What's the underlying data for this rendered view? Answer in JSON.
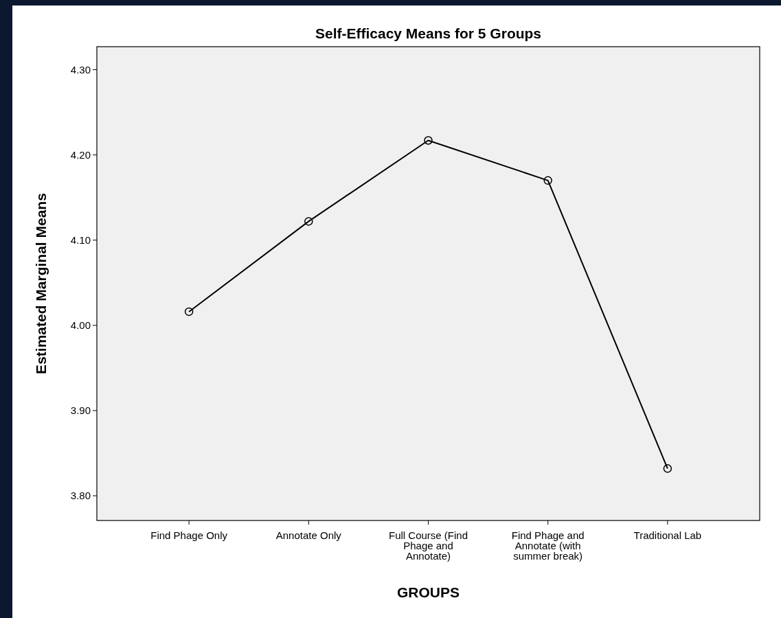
{
  "chart_data": {
    "type": "line",
    "title": "Self-Efficacy Means for 5 Groups",
    "xlabel": "GROUPS",
    "ylabel": "Estimated Marginal Means",
    "categories": [
      "Find Phage Only",
      "Annotate Only",
      "Full Course (Find Phage and Annotate)",
      "Find Phage and Annotate (with summer break)",
      "Traditional Lab"
    ],
    "series": [
      {
        "color": "#000000",
        "values": [
          4.016,
          4.122,
          4.217,
          4.17,
          3.832
        ]
      }
    ],
    "ylim": [
      3.771,
      4.327
    ],
    "yticks": [
      {
        "value": 3.8,
        "label": "3.80"
      },
      {
        "value": 3.9,
        "label": "3.90"
      },
      {
        "value": 4.0,
        "label": "4.00"
      },
      {
        "value": 4.1,
        "label": "4.10"
      },
      {
        "value": 4.2,
        "label": "4.20"
      },
      {
        "value": 4.3,
        "label": "4.30"
      }
    ],
    "marker": "circle",
    "line_style": "solid"
  }
}
